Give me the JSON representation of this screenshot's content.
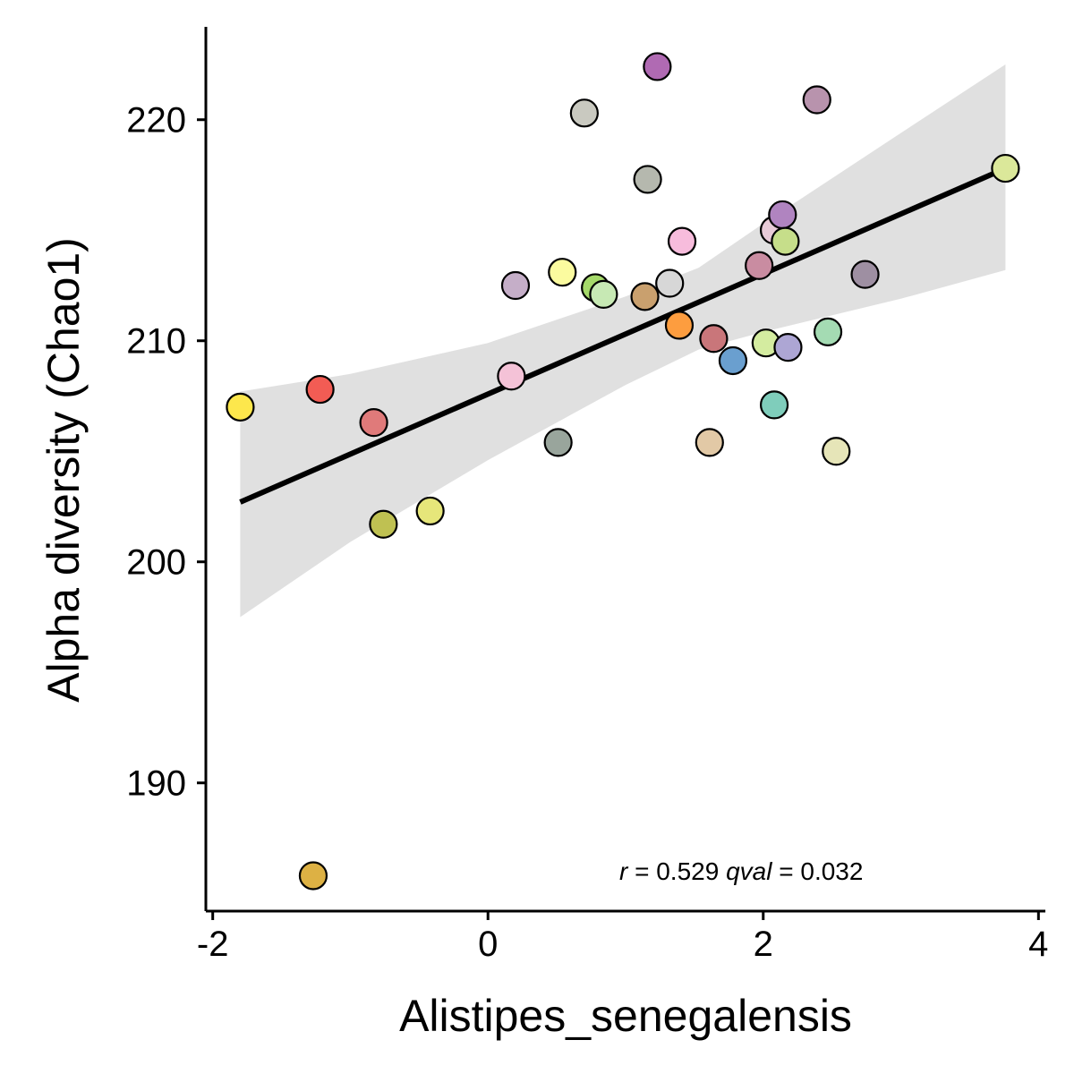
{
  "chart_data": {
    "type": "scatter",
    "xlabel": "Alistipes_senegalensis",
    "ylabel": "Alpha diversity (Chao1)",
    "xlim": [
      -2.05,
      4.05
    ],
    "ylim": [
      184.2,
      224.2
    ],
    "x_ticks": [
      -2,
      0,
      2,
      4
    ],
    "x_tick_labels": [
      "-2",
      "0",
      "2",
      "4"
    ],
    "y_ticks": [
      190,
      200,
      210,
      220
    ],
    "y_tick_labels": [
      "190",
      "200",
      "210",
      "220"
    ],
    "grid": false,
    "legend": "none",
    "points": [
      {
        "x": -1.8,
        "y": 207.0,
        "color": "#fde74c"
      },
      {
        "x": -1.22,
        "y": 207.8,
        "color": "#f25c54"
      },
      {
        "x": -1.27,
        "y": 185.8,
        "color": "#ddb144"
      },
      {
        "x": -0.83,
        "y": 206.3,
        "color": "#e07a7a"
      },
      {
        "x": -0.76,
        "y": 201.7,
        "color": "#bfc152"
      },
      {
        "x": -0.42,
        "y": 202.3,
        "color": "#e6e67a"
      },
      {
        "x": 0.17,
        "y": 208.4,
        "color": "#f4c2d7"
      },
      {
        "x": 0.2,
        "y": 212.5,
        "color": "#c5aec8"
      },
      {
        "x": 0.51,
        "y": 205.4,
        "color": "#99a59c"
      },
      {
        "x": 0.54,
        "y": 213.1,
        "color": "#fbfb9f"
      },
      {
        "x": 0.7,
        "y": 220.3,
        "color": "#c9c9c0"
      },
      {
        "x": 0.78,
        "y": 212.4,
        "color": "#a5d96a"
      },
      {
        "x": 0.84,
        "y": 212.1,
        "color": "#c7e9b4"
      },
      {
        "x": 1.14,
        "y": 212.0,
        "color": "#c9a06e"
      },
      {
        "x": 1.16,
        "y": 217.3,
        "color": "#b5b8ae"
      },
      {
        "x": 1.23,
        "y": 222.4,
        "color": "#b06ab3"
      },
      {
        "x": 1.32,
        "y": 212.6,
        "color": "#d7d7d7"
      },
      {
        "x": 1.39,
        "y": 210.7,
        "color": "#fd9d3f"
      },
      {
        "x": 1.41,
        "y": 214.5,
        "color": "#f7bcdc"
      },
      {
        "x": 1.61,
        "y": 205.4,
        "color": "#e2c9a6"
      },
      {
        "x": 1.64,
        "y": 210.1,
        "color": "#c9767a"
      },
      {
        "x": 1.78,
        "y": 209.1,
        "color": "#6a9fcf"
      },
      {
        "x": 1.97,
        "y": 213.4,
        "color": "#c98ca1"
      },
      {
        "x": 2.02,
        "y": 209.9,
        "color": "#d4eca0"
      },
      {
        "x": 2.08,
        "y": 207.1,
        "color": "#7fcdbb"
      },
      {
        "x": 2.08,
        "y": 215.0,
        "color": "#e8cbd8"
      },
      {
        "x": 2.14,
        "y": 215.7,
        "color": "#b084c0"
      },
      {
        "x": 2.16,
        "y": 214.5,
        "color": "#c6de8a"
      },
      {
        "x": 2.18,
        "y": 209.7,
        "color": "#ada6d4"
      },
      {
        "x": 2.39,
        "y": 220.9,
        "color": "#b893ad"
      },
      {
        "x": 2.47,
        "y": 210.4,
        "color": "#a4dbb3"
      },
      {
        "x": 2.53,
        "y": 205.0,
        "color": "#e6e5b8"
      },
      {
        "x": 2.74,
        "y": 213.0,
        "color": "#9e8fa2"
      },
      {
        "x": 3.76,
        "y": 217.8,
        "color": "#dbe89a"
      }
    ],
    "fit_line": {
      "x": [
        -1.8,
        3.76
      ],
      "y": [
        202.7,
        217.8
      ],
      "color": "#000000"
    },
    "confidence_band": {
      "x": [
        -1.8,
        -1.0,
        0.0,
        1.0,
        1.53,
        2.0,
        3.0,
        3.76
      ],
      "lower": [
        197.5,
        200.9,
        204.6,
        208.0,
        209.6,
        210.4,
        211.9,
        213.2
      ],
      "upper": [
        207.7,
        208.5,
        209.9,
        212.0,
        213.3,
        215.3,
        219.4,
        222.5
      ],
      "color": "#e0e0e0"
    },
    "annotation": {
      "r_label": "r",
      "r_value": " = 0.529 ",
      "q_label": "qval",
      "q_value": " = 0.032"
    }
  }
}
